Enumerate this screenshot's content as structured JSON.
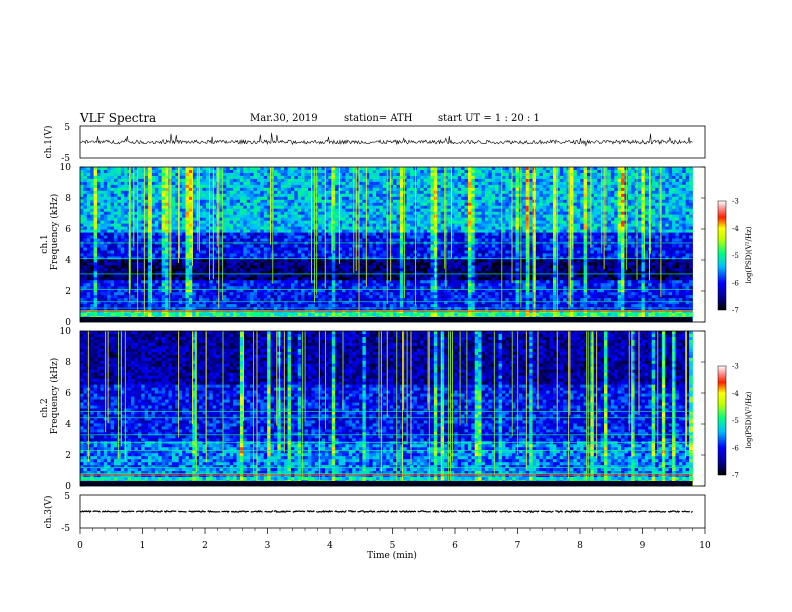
{
  "header": {
    "title": "VLF  Spectra",
    "date": "Mar.30, 2019",
    "station": "station= ATH",
    "start": "start  UT  =   1  : 20 : 1"
  },
  "colors": {
    "colormap": [
      "#000000",
      "#000080",
      "#0000ff",
      "#00a0ff",
      "#00ffff",
      "#00ff80",
      "#a0ff00",
      "#ffff00",
      "#ff8000",
      "#ff0000",
      "#ffffff"
    ]
  },
  "chart_data": [
    {
      "type": "line",
      "name": "ch1-waveform",
      "ylabel": "ch.1(V)",
      "ylim": [
        -5,
        5
      ],
      "yticks": [
        "5",
        "-5"
      ],
      "xlim": [
        0,
        10
      ],
      "baseline": 0,
      "noise_amplitude": 0.6
    },
    {
      "type": "heatmap",
      "name": "ch1-spectrogram",
      "ylabel": "ch.1",
      "ylabel2": "Frequency  (kHz)",
      "ylim": [
        0,
        10
      ],
      "yticks": [
        "10",
        "8",
        "6",
        "4",
        "2",
        "0"
      ],
      "xlim": [
        0,
        10
      ],
      "colorbar": {
        "label": "log(PSD)(V²/Hz)",
        "range": [
          -7,
          -3
        ],
        "ticks": [
          "-3",
          "-4",
          "-5",
          "-6",
          "-7"
        ]
      }
    },
    {
      "type": "heatmap",
      "name": "ch2-spectrogram",
      "ylabel": "ch.2",
      "ylabel2": "Frequency  (kHz)",
      "ylim": [
        0,
        10
      ],
      "yticks": [
        "10",
        "8",
        "6",
        "4",
        "2",
        "0"
      ],
      "xlim": [
        0,
        10
      ],
      "colorbar": {
        "label": "log(PSD)(V²/Hz)",
        "range": [
          -7,
          -3
        ],
        "ticks": [
          "-3",
          "-4",
          "-5",
          "-6",
          "-7"
        ]
      }
    },
    {
      "type": "line",
      "name": "ch3-waveform",
      "ylabel": "ch.3(V)",
      "ylim": [
        -5,
        5
      ],
      "yticks": [
        "5",
        "-5"
      ],
      "xlim": [
        0,
        10
      ],
      "baseline": 0,
      "noise_amplitude": 0.2
    }
  ],
  "time_axis": {
    "label": "Time  (min)",
    "ticks": [
      "0",
      "1",
      "2",
      "3",
      "4",
      "5",
      "6",
      "7",
      "8",
      "9",
      "10"
    ],
    "data_end_min": 9.8
  }
}
